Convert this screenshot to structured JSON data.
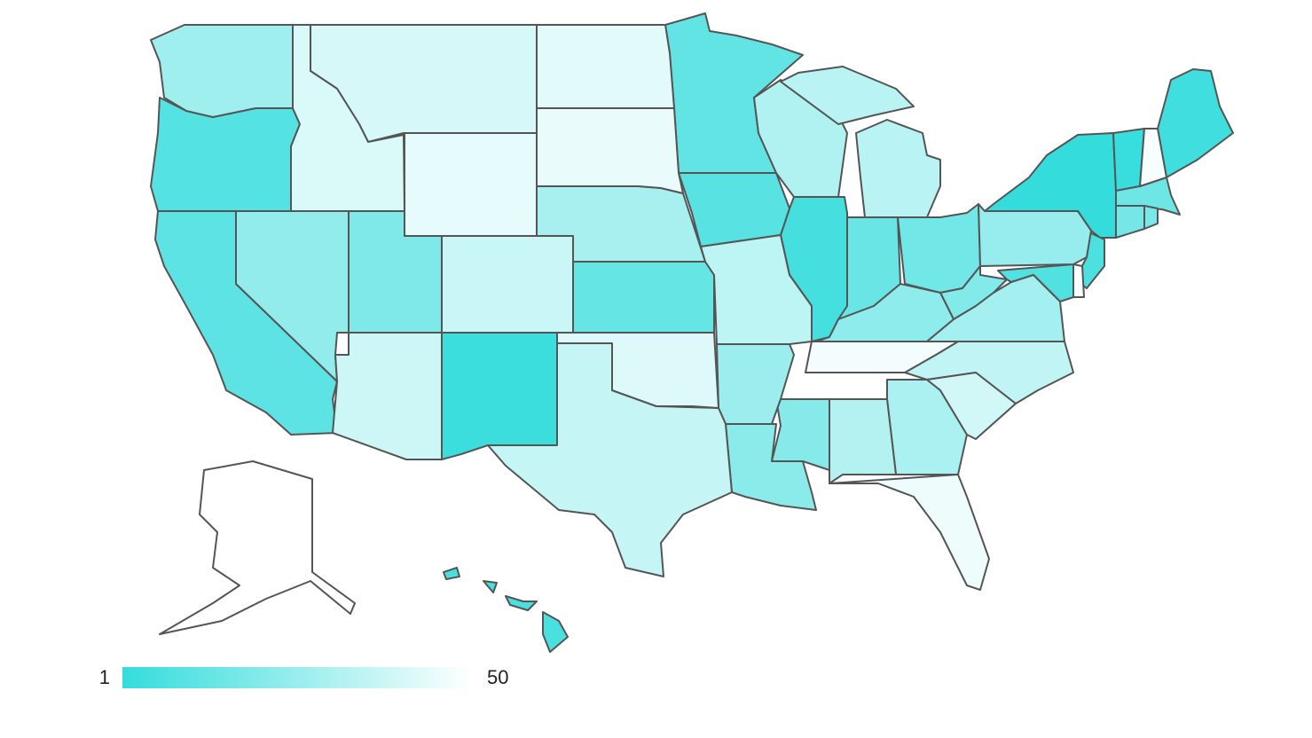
{
  "chart_data": {
    "type": "choropleth",
    "values": [
      1,
      2,
      3,
      4,
      5,
      6,
      7,
      8,
      9,
      10,
      11,
      12,
      13,
      14,
      15,
      16,
      17,
      18,
      19,
      20,
      21,
      22,
      23,
      24,
      25,
      26,
      27,
      28,
      29,
      30,
      31,
      32,
      33,
      34,
      35,
      36,
      37,
      38,
      39,
      40,
      41,
      42,
      43,
      44,
      45,
      46,
      47,
      48,
      49,
      50
    ],
    "colorscale": [
      "#34dcdc",
      "#ffffff"
    ],
    "clim": [
      1,
      50
    ],
    "cticks": [
      1,
      50
    ]
  }
}
